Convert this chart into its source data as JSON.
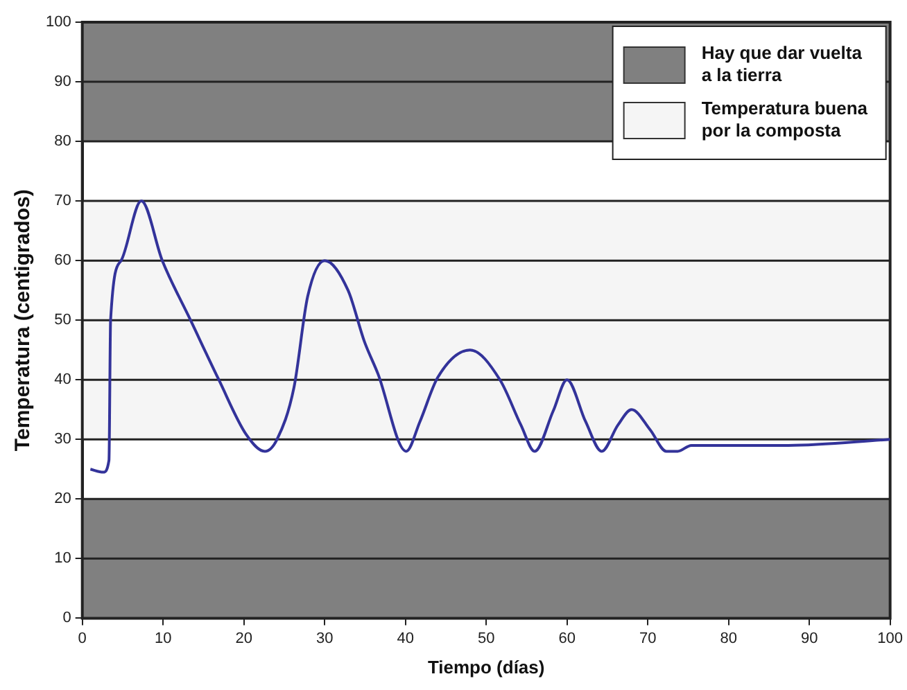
{
  "chart_data": {
    "type": "line",
    "xlabel": "Tiempo (días)",
    "ylabel": "Temperatura (centigrados)",
    "xlim": [
      0,
      100
    ],
    "xticks": [
      0,
      10,
      20,
      30,
      40,
      50,
      60,
      70,
      80,
      90,
      100
    ],
    "ylim": [
      0,
      100
    ],
    "yticks": [
      0,
      10,
      20,
      30,
      40,
      50,
      60,
      70,
      80,
      90,
      100
    ],
    "grid": "y",
    "legend": "top right",
    "marker": "none",
    "line_style": "solid",
    "series": [
      {
        "color": "#33339a",
        "x": [
          1,
          2.6,
          3.3,
          3.5,
          4.8,
          7.3,
          9.9,
          13.4,
          16.9,
          20.3,
          22.6,
          24.1,
          26.2,
          27.9,
          30,
          32.9,
          34.9,
          36.6,
          40.1,
          41.8,
          44,
          48,
          51.7,
          54.3,
          56,
          58.3,
          60,
          62.3,
          64.3,
          66.3,
          68,
          70.3,
          72.3,
          73.7,
          75.4,
          87.4,
          100
        ],
        "values": [
          25,
          24.5,
          26.5,
          50,
          60,
          70,
          60,
          50,
          40,
          30.8,
          28,
          30,
          38.7,
          54,
          60,
          55,
          46.5,
          41,
          28,
          33,
          40.4,
          45,
          40,
          32.4,
          28,
          34.8,
          40,
          33,
          28,
          32.4,
          35,
          31.6,
          28,
          28,
          29,
          29,
          30
        ]
      }
    ],
    "bands": [
      {
        "axis": "y",
        "from": 0,
        "to": 20,
        "label": "Hay que dar vuelta a la tierra",
        "color": "#808080"
      },
      {
        "axis": "y",
        "from": 80,
        "to": 100,
        "color": "#808080"
      },
      {
        "axis": "y",
        "from": 30,
        "to": 70,
        "label": "Temperatura buena por la composta",
        "color": "#f5f5f5"
      }
    ]
  }
}
